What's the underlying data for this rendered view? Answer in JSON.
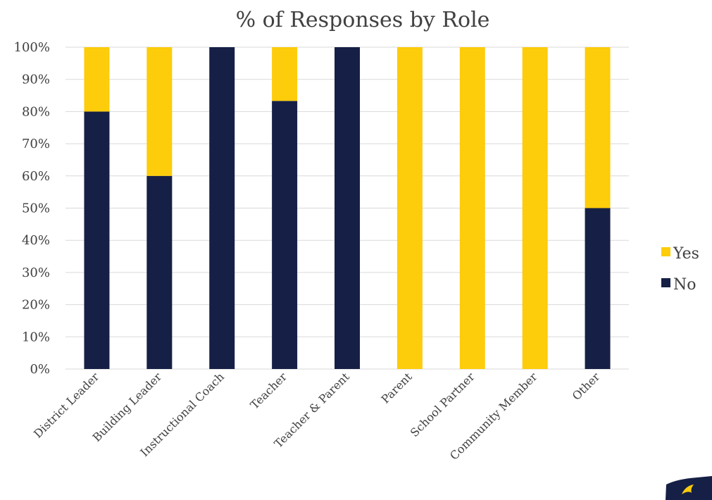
{
  "chart_data": {
    "type": "bar",
    "stacked": true,
    "title": "% of Responses by Role",
    "categories": [
      "District Leader",
      "Building Leader",
      "Instructional Coach",
      "Teacher",
      "Teacher & Parent",
      "Parent",
      "School Partner",
      "Community Member",
      "Other"
    ],
    "series": [
      {
        "name": "No",
        "color": "#162046",
        "values": [
          80,
          60,
          100,
          83.3,
          100,
          0,
          0,
          0,
          50
        ]
      },
      {
        "name": "Yes",
        "color": "#FDCC0B",
        "values": [
          20,
          40,
          0,
          16.7,
          0,
          100,
          100,
          100,
          50
        ]
      }
    ],
    "yticks": [
      "0%",
      "10%",
      "20%",
      "30%",
      "40%",
      "50%",
      "60%",
      "70%",
      "80%",
      "90%",
      "100%"
    ],
    "ylim": [
      0,
      100
    ],
    "grid": true,
    "legend": {
      "position": "right",
      "order": [
        "Yes",
        "No"
      ]
    }
  }
}
